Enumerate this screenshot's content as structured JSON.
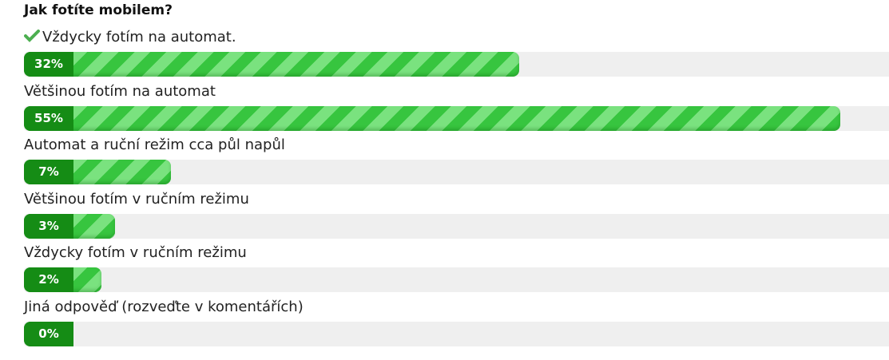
{
  "poll": {
    "title": "Jak fotíte mobilem?",
    "options": [
      {
        "label": "Vždycky fotím na automat.",
        "value": 32,
        "value_label": "32%",
        "selected": true
      },
      {
        "label": "Většinou fotím na automat",
        "value": 55,
        "value_label": "55%"
      },
      {
        "label": "Automat a ruční režim cca půl napůl",
        "value": 7,
        "value_label": "7%"
      },
      {
        "label": "Většinou fotím v ručním režimu",
        "value": 3,
        "value_label": "3%"
      },
      {
        "label": "Vždycky fotím v ručním režimu",
        "value": 2,
        "value_label": "2%"
      },
      {
        "label": "Jiná odpověď (rozveďte v komentářích)",
        "value": 0,
        "value_label": "0%"
      }
    ]
  }
}
